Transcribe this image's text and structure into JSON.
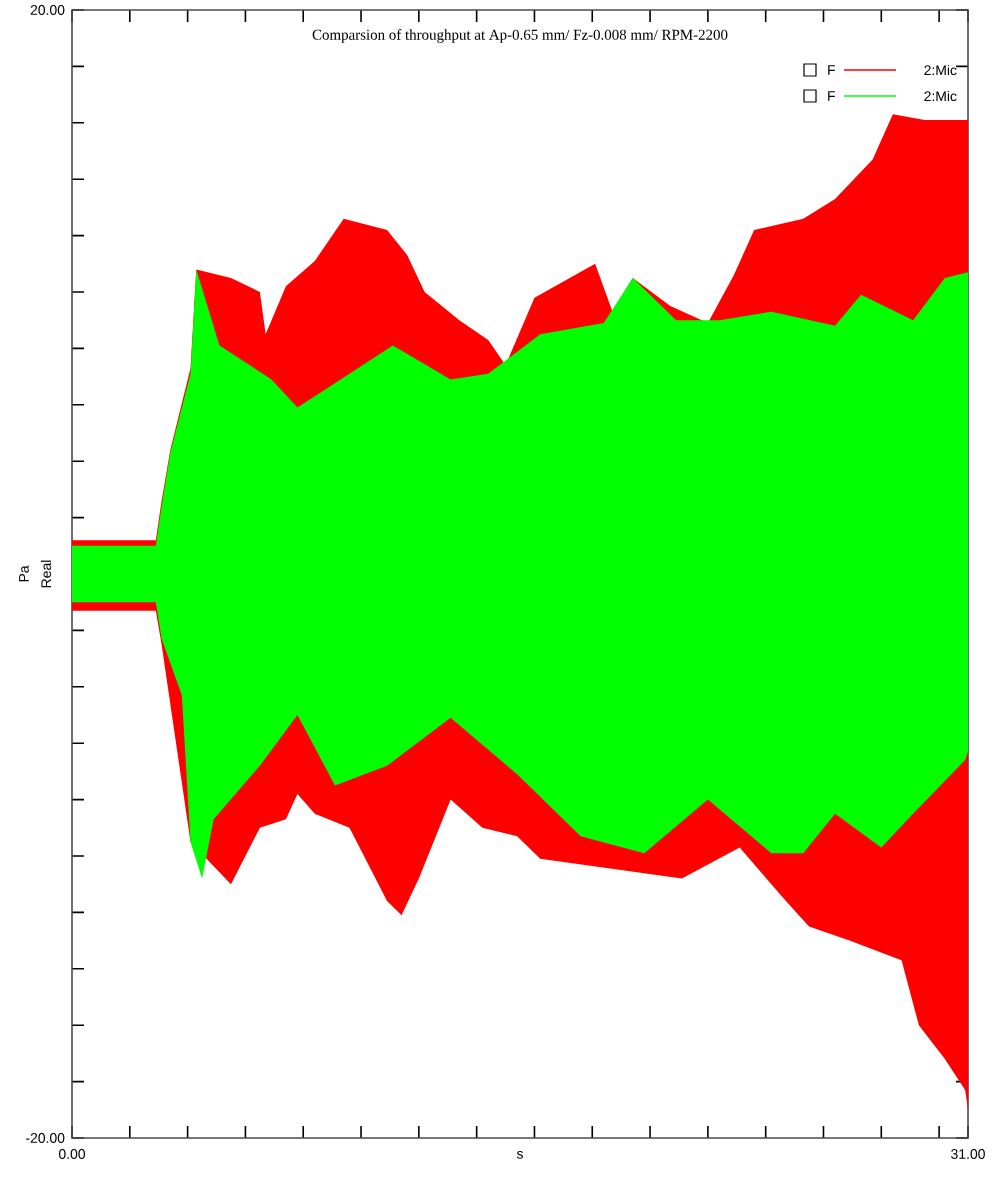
{
  "chart_data": {
    "type": "area",
    "title": "Comparsion of throughput at Ap-0.65 mm/ Fz-0.008 mm/ RPM-2200",
    "xlabel": "s",
    "ylabel": "Real",
    "annotations": [
      "F",
      "F",
      "Pa"
    ],
    "xlim": [
      0,
      31
    ],
    "ylim": [
      -20,
      20
    ],
    "xticks": [
      {
        "value": 0,
        "label": "0.00"
      },
      {
        "value": 2,
        "label": null
      },
      {
        "value": 4,
        "label": null
      },
      {
        "value": 6,
        "label": null
      },
      {
        "value": 8,
        "label": null
      },
      {
        "value": 10,
        "label": null
      },
      {
        "value": 12,
        "label": null
      },
      {
        "value": 14,
        "label": null
      },
      {
        "value": 16,
        "label": null
      },
      {
        "value": 18,
        "label": null
      },
      {
        "value": 20,
        "label": null
      },
      {
        "value": 22,
        "label": null
      },
      {
        "value": 24,
        "label": null
      },
      {
        "value": 26,
        "label": null
      },
      {
        "value": 28,
        "label": null
      },
      {
        "value": 30,
        "label": null
      },
      {
        "value": 31,
        "label": "31.00"
      }
    ],
    "yticks": [
      {
        "value": -20,
        "label": "-20.00"
      },
      {
        "value": -18,
        "label": null
      },
      {
        "value": -16,
        "label": null
      },
      {
        "value": -14,
        "label": null
      },
      {
        "value": -12,
        "label": null
      },
      {
        "value": -10,
        "label": null
      },
      {
        "value": -8,
        "label": null
      },
      {
        "value": -6,
        "label": null
      },
      {
        "value": -4,
        "label": null
      },
      {
        "value": -2,
        "label": null
      },
      {
        "value": 0,
        "label": null
      },
      {
        "value": 2,
        "label": null
      },
      {
        "value": 4,
        "label": null
      },
      {
        "value": 6,
        "label": null
      },
      {
        "value": 8,
        "label": null
      },
      {
        "value": 10,
        "label": null
      },
      {
        "value": 12,
        "label": null
      },
      {
        "value": 14,
        "label": null
      },
      {
        "value": 16,
        "label": null
      },
      {
        "value": 18,
        "label": null
      },
      {
        "value": 20,
        "label": "20.00"
      }
    ],
    "legend": "top right",
    "grid": false,
    "series": [
      {
        "name": "2:Mic",
        "color": "#ff0000",
        "x": [
          0,
          2.9,
          3.1,
          3.4,
          4.1,
          4.3,
          5.5,
          6.5,
          6.7,
          7.4,
          8.4,
          9.4,
          10.9,
          11.6,
          12.2,
          13.4,
          14.4,
          15.0,
          16.0,
          18.1,
          18.7,
          19.4,
          20.7,
          22.0,
          22.9,
          23.6,
          25.3,
          26.4,
          27.7,
          28.4,
          29.5,
          31.0
        ],
        "values": [
          1.2,
          1.2,
          2.6,
          4.4,
          7.3,
          10.8,
          10.5,
          10.0,
          8.5,
          10.2,
          11.1,
          12.6,
          12.2,
          11.3,
          10.0,
          9.0,
          8.3,
          7.4,
          9.8,
          11.0,
          9.3,
          10.5,
          9.5,
          8.9,
          10.6,
          12.2,
          12.6,
          13.3,
          14.7,
          16.3,
          16.1,
          16.1
        ]
      },
      {
        "color": "#ff0000",
        "x": [
          0,
          2.9,
          3.1,
          4.1,
          5.5,
          6.5,
          7.4,
          7.8,
          8.4,
          9.6,
          10.9,
          11.4,
          12.0,
          13.1,
          14.2,
          15.4,
          16.2,
          21.1,
          23.1,
          24.7,
          25.5,
          26.9,
          28.7,
          29.3,
          30.2,
          30.9,
          31.0
        ],
        "values": [
          -1.3,
          -1.3,
          -2.5,
          -9.5,
          -11.0,
          -9.0,
          -8.7,
          -7.8,
          -8.5,
          -9.0,
          -11.6,
          -12.1,
          -10.8,
          -8.0,
          -9.0,
          -9.3,
          -10.1,
          -10.8,
          -9.7,
          -11.6,
          -12.5,
          -13.0,
          -13.7,
          -16.0,
          -17.2,
          -18.3,
          -19.0
        ]
      },
      {
        "name": "2:Mic",
        "color": "#00ff00",
        "x": [
          0,
          2.9,
          3.1,
          3.4,
          4.1,
          4.3,
          5.1,
          6.9,
          7.8,
          9.6,
          11.1,
          13.1,
          14.4,
          16.2,
          18.4,
          19.4,
          20.9,
          22.4,
          24.2,
          26.4,
          27.3,
          29.1,
          30.2,
          31.0
        ],
        "values": [
          1.0,
          1.0,
          2.4,
          4.3,
          7.1,
          10.8,
          8.1,
          6.9,
          5.9,
          7.1,
          8.1,
          6.9,
          7.1,
          8.5,
          8.9,
          10.5,
          9.0,
          9.0,
          9.3,
          8.8,
          9.9,
          9.0,
          10.5,
          10.7
        ]
      },
      {
        "color": "#00ff00",
        "x": [
          0,
          2.9,
          3.1,
          3.8,
          4.1,
          4.5,
          4.9,
          6.5,
          7.8,
          9.1,
          10.9,
          13.1,
          15.4,
          17.6,
          19.8,
          22.0,
          24.2,
          25.3,
          26.4,
          28.0,
          29.1,
          30.9,
          31.0
        ],
        "values": [
          -1.0,
          -1.0,
          -2.3,
          -4.3,
          -9.5,
          -10.8,
          -8.7,
          -6.8,
          -5.0,
          -7.5,
          -6.8,
          -5.1,
          -7.1,
          -9.3,
          -9.9,
          -8.0,
          -9.9,
          -9.9,
          -8.5,
          -9.7,
          -8.5,
          -6.6,
          -6.3
        ]
      }
    ]
  }
}
